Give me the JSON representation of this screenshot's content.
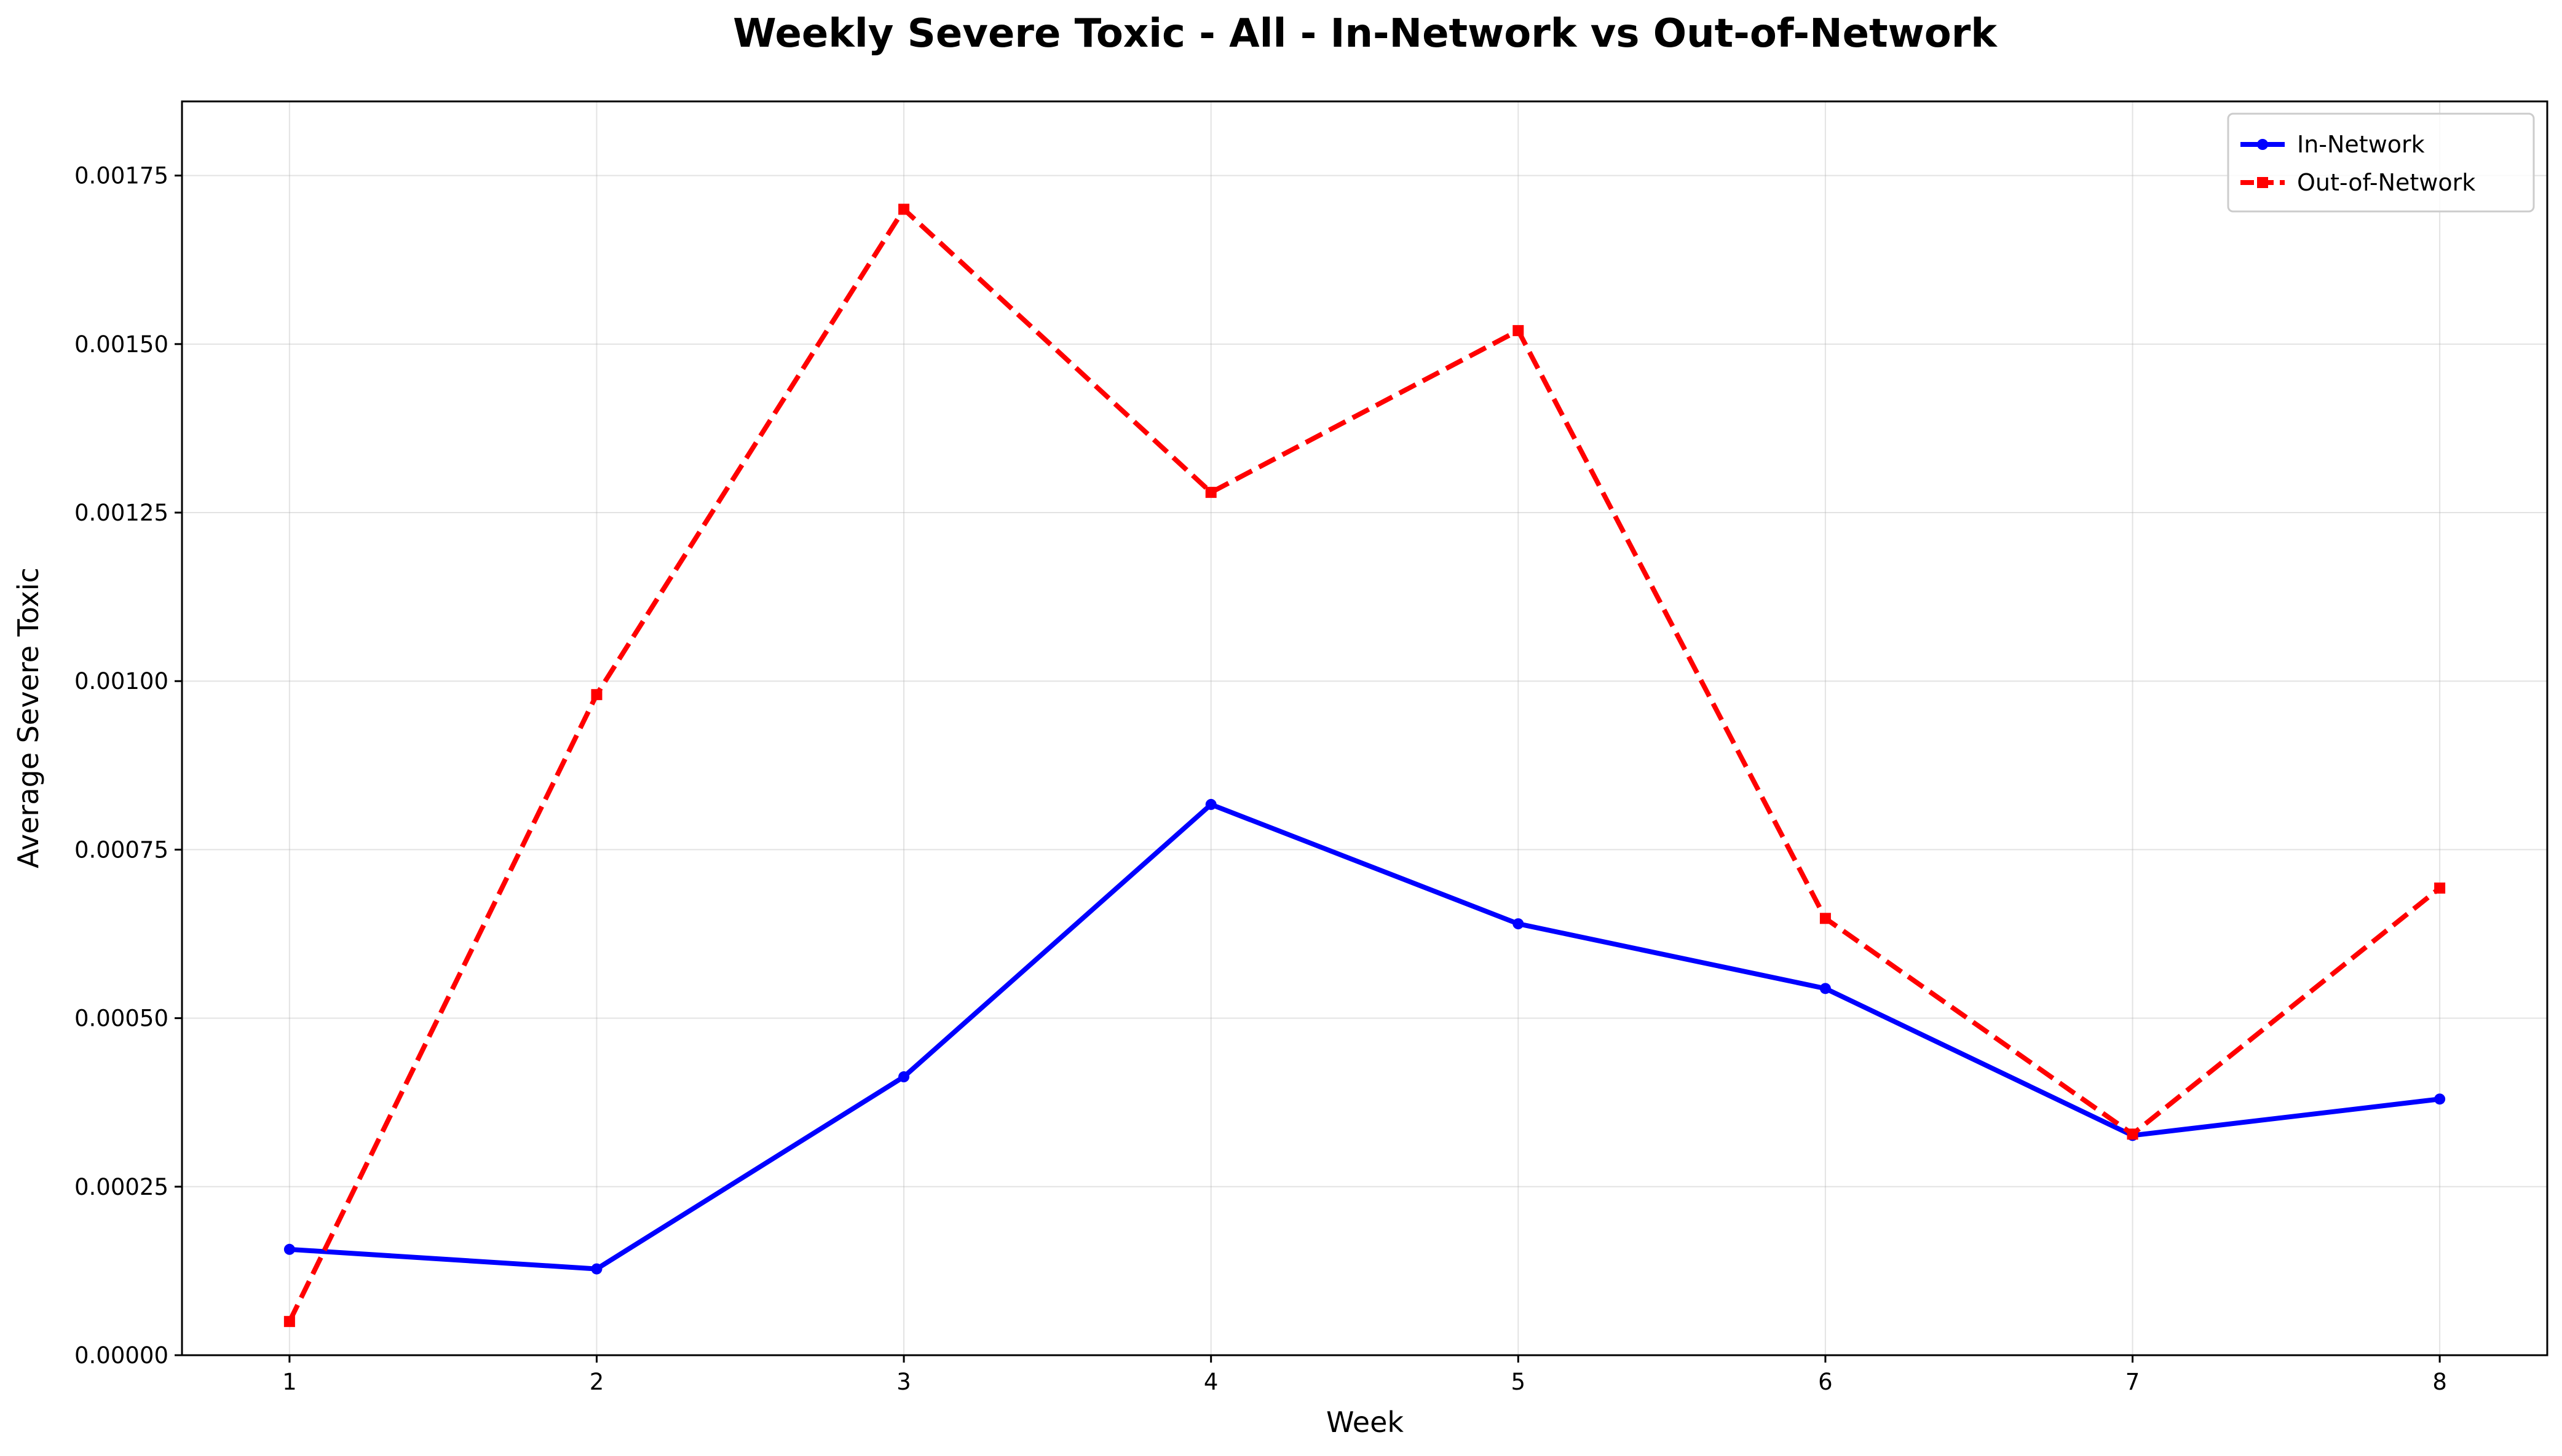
{
  "chart_data": {
    "type": "line",
    "title": "Weekly Severe Toxic - All - In-Network vs Out-of-Network",
    "xlabel": "Week",
    "ylabel": "Average Severe Toxic",
    "x": [
      1,
      2,
      3,
      4,
      5,
      6,
      7,
      8
    ],
    "x_ticks": [
      "1",
      "2",
      "3",
      "4",
      "5",
      "6",
      "7",
      "8"
    ],
    "xlim": [
      0.65,
      8.35
    ],
    "ylim": [
      0,
      0.00186
    ],
    "y_ticks": [
      0,
      0.00025,
      0.0005,
      0.00075,
      0.001,
      0.00125,
      0.0015,
      0.00175
    ],
    "y_tick_labels": [
      "0.00000",
      "0.00025",
      "0.00050",
      "0.00075",
      "0.00100",
      "0.00125",
      "0.00150",
      "0.00175"
    ],
    "grid": true,
    "legend_position": "top-right",
    "series": [
      {
        "name": "In-Network",
        "color": "#0000ff",
        "line_style": "solid",
        "marker": "circle",
        "values": [
          0.000157,
          0.000128,
          0.000413,
          0.000817,
          0.00064,
          0.000544,
          0.000326,
          0.00038
        ]
      },
      {
        "name": "Out-of-Network",
        "color": "#ff0000",
        "line_style": "dashed",
        "marker": "square",
        "values": [
          5e-05,
          0.00098,
          0.0017,
          0.00128,
          0.00152,
          0.000648,
          0.000328,
          0.000693
        ]
      }
    ]
  }
}
